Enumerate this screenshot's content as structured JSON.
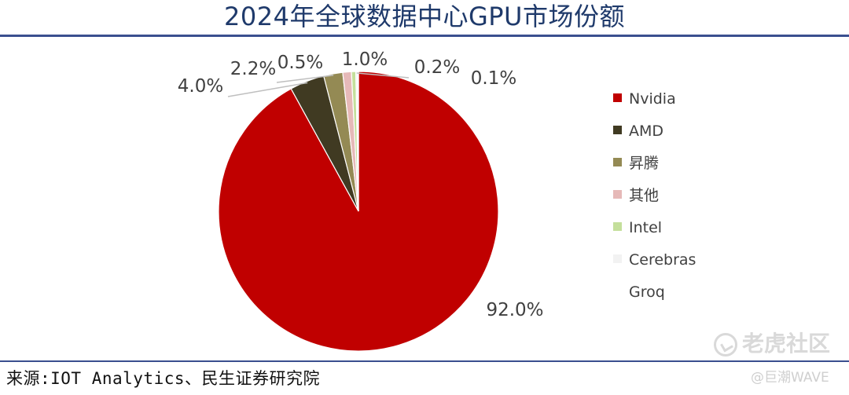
{
  "header": {
    "title": "2024年全球数据中心GPU市场份额"
  },
  "footer": {
    "source": "来源:IOT Analytics、民生证券研究院"
  },
  "watermarks": {
    "platform": "老虎社区",
    "handle": "@巨潮WAVE"
  },
  "chart_data": {
    "type": "pie",
    "title": "2024年全球数据中心GPU市场份额",
    "legend_position": "right",
    "start_angle_deg": 0,
    "direction": "clockwise",
    "slices": [
      {
        "label": "Nvidia",
        "value": 92.0,
        "value_label": "92.0%",
        "color": "#c00000"
      },
      {
        "label": "AMD",
        "value": 4.0,
        "value_label": "4.0%",
        "color": "#403a22"
      },
      {
        "label": "昇腾",
        "value": 2.2,
        "value_label": "2.2%",
        "color": "#948a54"
      },
      {
        "label": "其他",
        "value": 1.0,
        "value_label": "1.0%",
        "color": "#e6b9b8"
      },
      {
        "label": "Intel",
        "value": 0.5,
        "value_label": "0.5%",
        "color": "#c4df9b"
      },
      {
        "label": "Cerebras",
        "value": 0.2,
        "value_label": "0.2%",
        "color": "#f2f2f2"
      },
      {
        "label": "Groq",
        "value": 0.1,
        "value_label": "0.1%",
        "color": "#ffffff"
      }
    ]
  }
}
